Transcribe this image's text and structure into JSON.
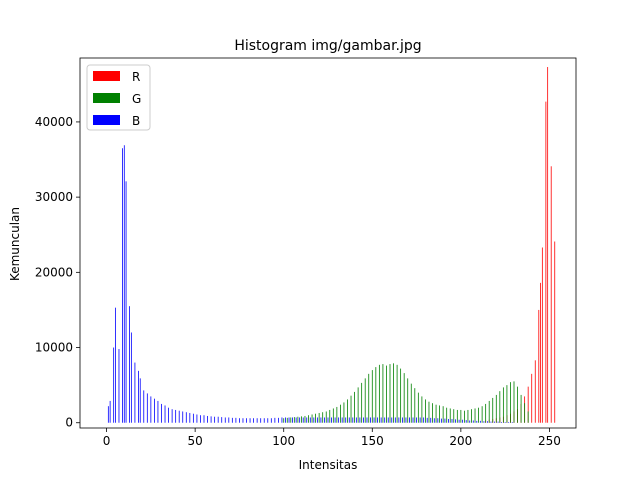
{
  "chart_data": {
    "type": "bar",
    "title": "Histogram img/gambar.jpg",
    "xlabel": "Intensitas",
    "ylabel": "Kemunculan",
    "xlim": [
      -15,
      265
    ],
    "ylim": [
      -700,
      48500
    ],
    "xticks": [
      0,
      50,
      100,
      150,
      200,
      250
    ],
    "yticks": [
      0,
      10000,
      20000,
      30000,
      40000
    ],
    "grid": false,
    "legend_position": "top-left",
    "series": [
      {
        "name": "R",
        "color": "#ff0000",
        "points": [
          [
            214,
            300
          ],
          [
            216,
            400
          ],
          [
            218,
            500
          ],
          [
            220,
            600
          ],
          [
            222,
            700
          ],
          [
            224,
            800
          ],
          [
            226,
            1000
          ],
          [
            228,
            1200
          ],
          [
            230,
            1500
          ],
          [
            232,
            1800
          ],
          [
            234,
            2500
          ],
          [
            236,
            3500
          ],
          [
            238,
            4800
          ],
          [
            240,
            6500
          ],
          [
            242,
            8300
          ],
          [
            244,
            15000
          ],
          [
            245,
            18600
          ],
          [
            246,
            23300
          ],
          [
            248,
            42700
          ],
          [
            249,
            47300
          ],
          [
            251,
            34100
          ],
          [
            253,
            24100
          ]
        ]
      },
      {
        "name": "G",
        "color": "#008000",
        "points": [
          [
            100,
            600
          ],
          [
            102,
            650
          ],
          [
            104,
            700
          ],
          [
            106,
            750
          ],
          [
            108,
            800
          ],
          [
            110,
            850
          ],
          [
            112,
            900
          ],
          [
            114,
            1000
          ],
          [
            116,
            1100
          ],
          [
            118,
            1200
          ],
          [
            120,
            1300
          ],
          [
            122,
            1400
          ],
          [
            124,
            1500
          ],
          [
            126,
            1700
          ],
          [
            128,
            1900
          ],
          [
            130,
            2100
          ],
          [
            132,
            2400
          ],
          [
            134,
            2700
          ],
          [
            136,
            3100
          ],
          [
            138,
            3600
          ],
          [
            140,
            4100
          ],
          [
            142,
            4700
          ],
          [
            144,
            5300
          ],
          [
            146,
            5900
          ],
          [
            148,
            6500
          ],
          [
            150,
            7000
          ],
          [
            152,
            7400
          ],
          [
            154,
            7700
          ],
          [
            156,
            7800
          ],
          [
            158,
            7600
          ],
          [
            160,
            7800
          ],
          [
            162,
            7900
          ],
          [
            164,
            7700
          ],
          [
            166,
            7200
          ],
          [
            168,
            6600
          ],
          [
            170,
            5900
          ],
          [
            172,
            5200
          ],
          [
            174,
            4600
          ],
          [
            176,
            4000
          ],
          [
            178,
            3500
          ],
          [
            180,
            3100
          ],
          [
            182,
            2800
          ],
          [
            184,
            2600
          ],
          [
            186,
            2400
          ],
          [
            188,
            2300
          ],
          [
            190,
            2200
          ],
          [
            192,
            2000
          ],
          [
            194,
            1900
          ],
          [
            196,
            1800
          ],
          [
            198,
            1700
          ],
          [
            200,
            1700
          ],
          [
            202,
            1600
          ],
          [
            204,
            1700
          ],
          [
            206,
            1800
          ],
          [
            208,
            1900
          ],
          [
            210,
            2000
          ],
          [
            212,
            2200
          ],
          [
            214,
            2500
          ],
          [
            216,
            2900
          ],
          [
            218,
            3300
          ],
          [
            220,
            3700
          ],
          [
            222,
            4200
          ],
          [
            224,
            4700
          ],
          [
            226,
            5000
          ],
          [
            228,
            5400
          ],
          [
            230,
            5500
          ],
          [
            232,
            4800
          ],
          [
            234,
            3700
          ],
          [
            236,
            2600
          ],
          [
            238,
            1500
          ]
        ]
      },
      {
        "name": "B",
        "color": "#0000ff",
        "points": [
          [
            1,
            2200
          ],
          [
            2,
            2900
          ],
          [
            4,
            10000
          ],
          [
            5,
            15300
          ],
          [
            7,
            9800
          ],
          [
            9,
            36500
          ],
          [
            10,
            36900
          ],
          [
            11,
            32100
          ],
          [
            13,
            15500
          ],
          [
            14,
            12000
          ],
          [
            16,
            8000
          ],
          [
            18,
            6900
          ],
          [
            19,
            5900
          ],
          [
            21,
            4300
          ],
          [
            23,
            3900
          ],
          [
            25,
            3500
          ],
          [
            27,
            3200
          ],
          [
            29,
            2900
          ],
          [
            31,
            2500
          ],
          [
            33,
            2300
          ],
          [
            35,
            2000
          ],
          [
            37,
            1800
          ],
          [
            39,
            1700
          ],
          [
            41,
            1600
          ],
          [
            43,
            1500
          ],
          [
            45,
            1400
          ],
          [
            47,
            1300
          ],
          [
            49,
            1200
          ],
          [
            51,
            1100
          ],
          [
            53,
            1000
          ],
          [
            55,
            1000
          ],
          [
            57,
            900
          ],
          [
            59,
            850
          ],
          [
            61,
            800
          ],
          [
            63,
            800
          ],
          [
            65,
            750
          ],
          [
            67,
            700
          ],
          [
            69,
            700
          ],
          [
            71,
            650
          ],
          [
            73,
            650
          ],
          [
            75,
            600
          ],
          [
            77,
            600
          ],
          [
            79,
            600
          ],
          [
            81,
            600
          ],
          [
            83,
            600
          ],
          [
            85,
            600
          ],
          [
            87,
            600
          ],
          [
            89,
            600
          ],
          [
            91,
            600
          ],
          [
            93,
            600
          ],
          [
            95,
            650
          ],
          [
            97,
            650
          ],
          [
            99,
            700
          ],
          [
            101,
            700
          ],
          [
            103,
            700
          ],
          [
            105,
            700
          ],
          [
            107,
            700
          ],
          [
            109,
            700
          ],
          [
            111,
            700
          ],
          [
            113,
            700
          ],
          [
            115,
            700
          ],
          [
            117,
            700
          ],
          [
            119,
            700
          ],
          [
            121,
            700
          ],
          [
            123,
            700
          ],
          [
            125,
            700
          ],
          [
            127,
            700
          ],
          [
            129,
            700
          ],
          [
            131,
            700
          ],
          [
            133,
            700
          ],
          [
            135,
            700
          ],
          [
            137,
            700
          ],
          [
            139,
            700
          ],
          [
            141,
            700
          ],
          [
            143,
            700
          ],
          [
            145,
            700
          ],
          [
            147,
            700
          ],
          [
            149,
            700
          ],
          [
            151,
            700
          ],
          [
            153,
            700
          ],
          [
            155,
            700
          ],
          [
            157,
            700
          ],
          [
            159,
            700
          ],
          [
            161,
            700
          ],
          [
            163,
            700
          ],
          [
            165,
            700
          ],
          [
            167,
            700
          ],
          [
            169,
            700
          ],
          [
            171,
            700
          ],
          [
            173,
            700
          ],
          [
            175,
            700
          ],
          [
            177,
            700
          ],
          [
            179,
            700
          ],
          [
            181,
            650
          ],
          [
            183,
            650
          ],
          [
            185,
            600
          ],
          [
            187,
            600
          ],
          [
            189,
            550
          ],
          [
            191,
            550
          ],
          [
            193,
            500
          ],
          [
            195,
            500
          ],
          [
            197,
            450
          ],
          [
            199,
            400
          ],
          [
            201,
            400
          ],
          [
            203,
            350
          ],
          [
            205,
            300
          ],
          [
            207,
            300
          ],
          [
            209,
            250
          ],
          [
            211,
            250
          ],
          [
            213,
            200
          ],
          [
            215,
            200
          ],
          [
            217,
            150
          ],
          [
            219,
            150
          ],
          [
            221,
            150
          ],
          [
            223,
            100
          ],
          [
            225,
            100
          ],
          [
            227,
            100
          ],
          [
            229,
            100
          ]
        ]
      }
    ]
  }
}
